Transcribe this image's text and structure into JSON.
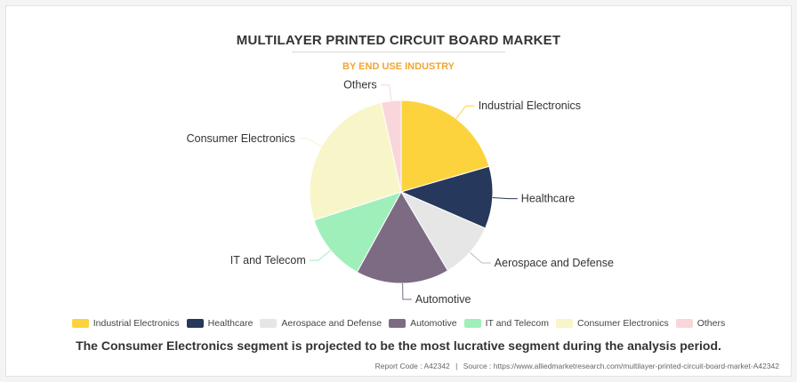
{
  "title": "MULTILAYER PRINTED CIRCUIT BOARD MARKET",
  "subtitle": "BY END USE INDUSTRY",
  "statement": "The Consumer Electronics segment is projected to be the most lucrative segment during the analysis period.",
  "footer": {
    "report_code": "Report Code : A42342",
    "separator": "|",
    "source": "Source : https://www.alliedmarketresearch.com/multilayer-printed-circuit-board-market-A42342"
  },
  "chart_data": {
    "type": "pie",
    "title": "MULTILAYER PRINTED CIRCUIT BOARD MARKET",
    "subtitle": "BY END USE INDUSTRY",
    "legend_position": "bottom",
    "slices": [
      {
        "label": "Industrial Electronics",
        "value": 20.5,
        "color": "#fdd33d"
      },
      {
        "label": "Healthcare",
        "value": 11,
        "color": "#26385b"
      },
      {
        "label": "Aerospace and Defense",
        "value": 10,
        "color": "#e6e6e6"
      },
      {
        "label": "Automotive",
        "value": 16.5,
        "color": "#7d6b84"
      },
      {
        "label": "IT and Telecom",
        "value": 12,
        "color": "#9fefbb"
      },
      {
        "label": "Consumer Electronics",
        "value": 26.5,
        "color": "#f8f6c8"
      },
      {
        "label": "Others",
        "value": 3.5,
        "color": "#f8d6d9"
      }
    ]
  }
}
